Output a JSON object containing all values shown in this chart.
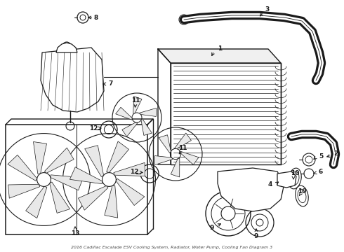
{
  "background_color": "#ffffff",
  "line_color": "#1a1a1a",
  "fig_width": 4.9,
  "fig_height": 3.6,
  "dpi": 100,
  "caption": "2016 Cadillac Escalade ESV Cooling System, Radiator, Water Pump, Cooling Fan Diagram 3"
}
